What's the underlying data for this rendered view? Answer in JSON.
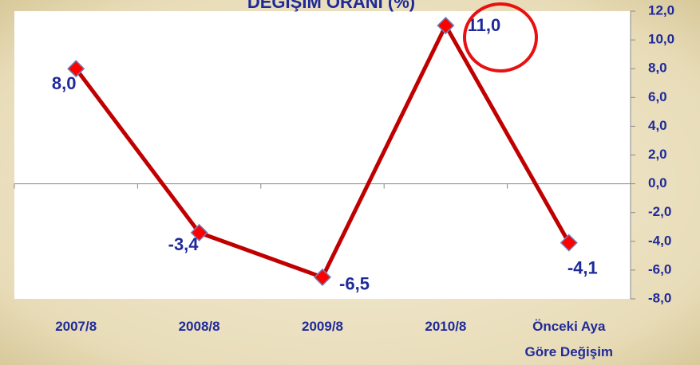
{
  "chart_data": {
    "type": "line",
    "title": "DEĞİŞİM ORANI (%)",
    "categories": [
      "2007/8",
      "2008/8",
      "2009/8",
      "2010/8",
      "Önceki Aya Göre Değişim"
    ],
    "values": [
      8.0,
      -3.4,
      -6.5,
      11.0,
      -4.1
    ],
    "value_labels": [
      "8,0",
      "-3,4",
      "-6,5",
      "11,0",
      "-4,1"
    ],
    "color": "#c00000",
    "marker_color": "#ff0000",
    "ylim": [
      -8,
      12
    ],
    "yticks": [
      {
        "value": -8,
        "label": "-8,0"
      },
      {
        "value": -6,
        "label": "-6,0"
      },
      {
        "value": -4,
        "label": "-4,0"
      },
      {
        "value": -2,
        "label": "-2,0"
      },
      {
        "value": 0,
        "label": "0,0"
      },
      {
        "value": 2,
        "label": "2,0"
      },
      {
        "value": 4,
        "label": "4,0"
      },
      {
        "value": 6,
        "label": "6,0"
      },
      {
        "value": 8,
        "label": "8,0"
      },
      {
        "value": 10,
        "label": "10,0"
      },
      {
        "value": 12,
        "label": "12,0"
      }
    ],
    "yaxis_side": "right",
    "grid": false
  }
}
